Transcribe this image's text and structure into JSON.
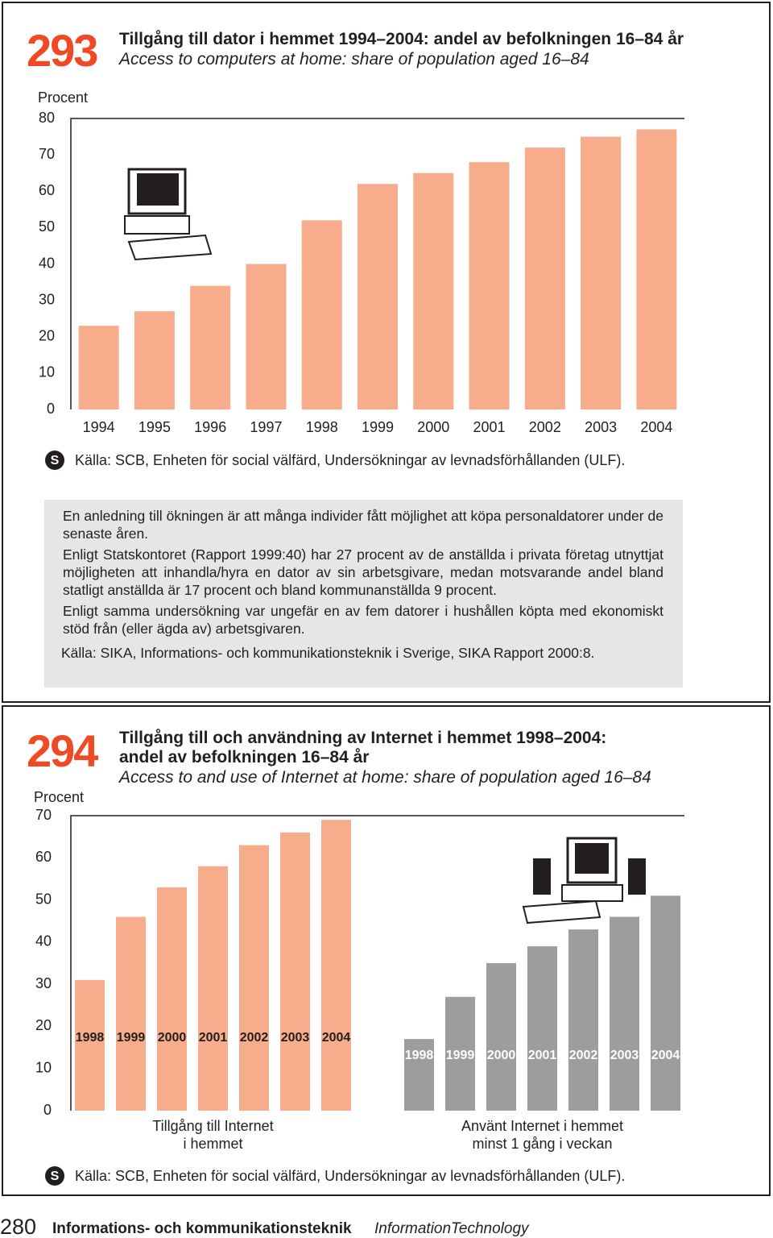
{
  "chart_data": [
    {
      "type": "bar",
      "number": "293",
      "title": "Tillgång till dator i hemmet 1994–2004: andel av befolkningen 16–84 år",
      "subtitle": "Access to computers at home: share of population aged 16–84",
      "y_label": "Procent",
      "categories": [
        "1994",
        "1995",
        "1996",
        "1997",
        "1998",
        "1999",
        "2000",
        "2001",
        "2002",
        "2003",
        "2004"
      ],
      "values": [
        23,
        27,
        34,
        40,
        52,
        62,
        65,
        68,
        72,
        75,
        77
      ],
      "color": "#f7ac8c",
      "ylim": [
        0,
        80
      ],
      "yticks": [
        0,
        10,
        20,
        30,
        40,
        50,
        60,
        70,
        80
      ],
      "source": "Källa: SCB, Enheten för social välfärd, Undersökningar av levnadsförhållanden (ULF)."
    },
    {
      "type": "grouped_bar",
      "number": "294",
      "title": "Tillgång till och användning av Internet i hemmet 1998–2004:\nandel av befolkningen 16–84 år",
      "subtitle": "Access to and use of Internet at home: share of population aged 16–84",
      "y_label": "Procent",
      "categories": [
        "1998",
        "1999",
        "2000",
        "2001",
        "2002",
        "2003",
        "2004"
      ],
      "series": [
        {
          "name": "Tillgång till Internet\ni hemmet",
          "color": "#f7ac8c",
          "values": [
            31,
            46,
            53,
            58,
            63,
            66,
            69
          ]
        },
        {
          "name": "Använt Internet i hemmet\nminst 1 gång i veckan",
          "color": "#9d9d9f",
          "values": [
            17,
            27,
            35,
            39,
            43,
            46,
            51
          ]
        }
      ],
      "ylim": [
        0,
        70
      ],
      "yticks": [
        0,
        10,
        20,
        30,
        40,
        50,
        60,
        70
      ],
      "source": "Källa: SCB, Enheten för social välfärd, Undersökningar av levnadsförhållanden (ULF)."
    }
  ],
  "notes": {
    "paragraphs": [
      "En anledning till ökningen är att många individer fått möjlighet att köpa personaldatorer under de senaste åren.",
      "Enligt Statskontoret (Rapport 1999:40) har 27 procent av de anställda i privata företag utnyttjat möjligheten att inhandla/hyra en dator av sin arbetsgivare, medan motsvarande andel bland statligt anställda är 17 procent och bland kommunanställda 9 procent.",
      "Enligt samma undersökning var ungefär en av fem datorer i hushållen köpta med ekonomiskt stöd från (eller ägda av) arbetsgivaren."
    ],
    "source": "Källa: SIKA, Informations- och kommunikationsteknik i Sverige, SIKA Rapport 2000:8."
  },
  "footer": {
    "page": "280",
    "title": "Informations- och kommunikationsteknik",
    "title_en": "InformationTechnology"
  }
}
